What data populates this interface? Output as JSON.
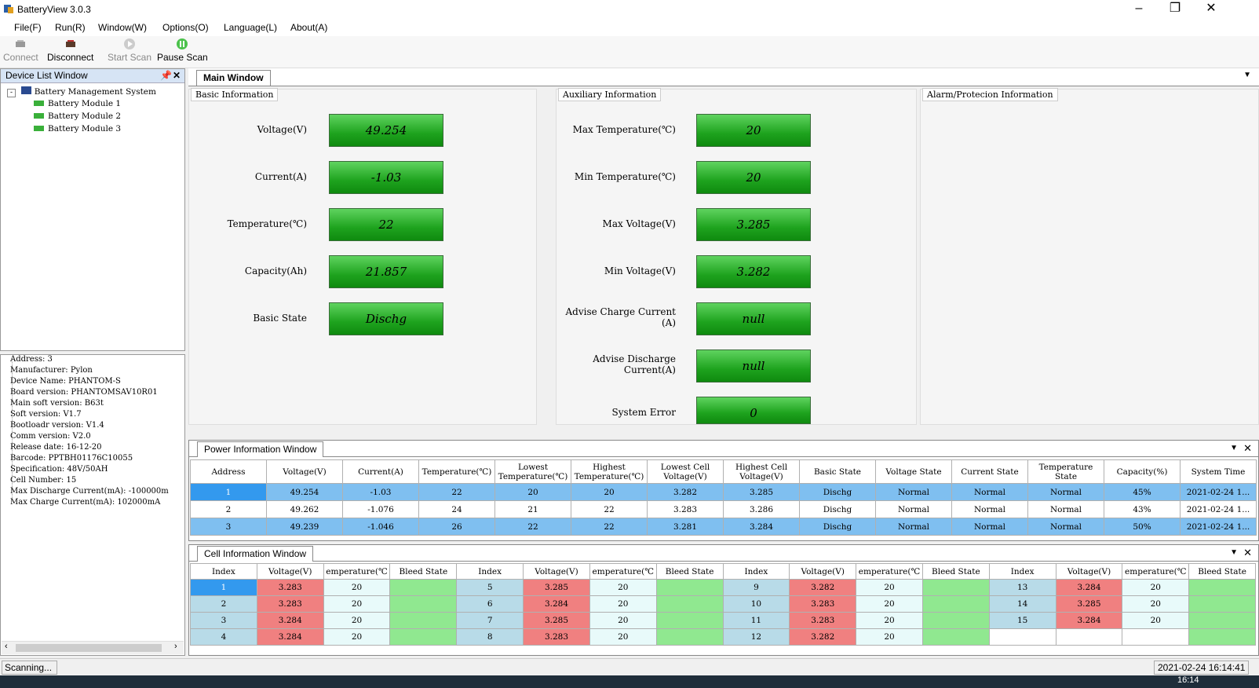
{
  "window": {
    "title": "BatteryView 3.0.3"
  },
  "menu": [
    "File(F)",
    "Run(R)",
    "Window(W)",
    "Options(O)",
    "Language(L)",
    "About(A)"
  ],
  "toolbar": {
    "connect": "Connect",
    "disconnect": "Disconnect",
    "start_scan": "Start Scan",
    "pause_scan": "Pause Scan"
  },
  "device_list": {
    "header": "Device List Window",
    "root": "Battery Management System",
    "modules": [
      "Battery Module 1",
      "Battery Module 2",
      "Battery Module 3"
    ]
  },
  "device_info": [
    "Address: 3",
    "Manufacturer: Pylon",
    "Device Name: PHANTOM-S",
    "Board version: PHANTOMSAV10R01",
    "Main soft version: B63t",
    "Soft version: V1.7",
    "Bootloadr version: V1.4",
    "Comm version: V2.0",
    "Release date: 16-12-20",
    "Barcode: PPTBH01176C10055",
    "Specification: 48V/50AH",
    "Cell Number: 15",
    "Max Discharge Current(mA): -100000m",
    "Max Charge Current(mA): 102000mA"
  ],
  "main_tab": "Main Window",
  "basic_info": {
    "title": "Basic Information",
    "fields": [
      {
        "label": "Voltage(V)",
        "value": "49.254"
      },
      {
        "label": "Current(A)",
        "value": "-1.03"
      },
      {
        "label": "Temperature(℃)",
        "value": "22"
      },
      {
        "label": "Capacity(Ah)",
        "value": "21.857"
      },
      {
        "label": "Basic State",
        "value": "Dischg"
      }
    ]
  },
  "aux_info": {
    "title": "Auxiliary Information",
    "fields": [
      {
        "label": "Max Temperature(℃)",
        "value": "20"
      },
      {
        "label": "Min Temperature(℃)",
        "value": "20"
      },
      {
        "label": "Max Voltage(V)",
        "value": "3.285"
      },
      {
        "label": "Min Voltage(V)",
        "value": "3.282"
      },
      {
        "label": "Advise Charge Current\n(A)",
        "value": "null"
      },
      {
        "label": "Advise Discharge\nCurrent(A)",
        "value": "null"
      },
      {
        "label": "System Error",
        "value": "0"
      }
    ]
  },
  "alarm_info": {
    "title": "Alarm/Protecion Information"
  },
  "power_window": {
    "title": "Power Information Window",
    "headers": [
      "Address",
      "Voltage(V)",
      "Current(A)",
      "Temperature(℃)",
      "Lowest\nTemperature(℃)",
      "Highest\nTemperature(℃)",
      "Lowest Cell\nVoltage(V)",
      "Highest Cell\nVoltage(V)",
      "Basic State",
      "Voltage State",
      "Current State",
      "Temperature\nState",
      "Capacity(%)",
      "System Time"
    ],
    "rows": [
      [
        "1",
        "49.254",
        "-1.03",
        "22",
        "20",
        "20",
        "3.282",
        "3.285",
        "Dischg",
        "Normal",
        "Normal",
        "Normal",
        "45%",
        "2021-02-24 1..."
      ],
      [
        "2",
        "49.262",
        "-1.076",
        "24",
        "21",
        "22",
        "3.283",
        "3.286",
        "Dischg",
        "Normal",
        "Normal",
        "Normal",
        "43%",
        "2021-02-24 1..."
      ],
      [
        "3",
        "49.239",
        "-1.046",
        "26",
        "22",
        "22",
        "3.281",
        "3.284",
        "Dischg",
        "Normal",
        "Normal",
        "Normal",
        "50%",
        "2021-02-24 1..."
      ]
    ]
  },
  "cell_window": {
    "title": "Cell Information Window",
    "headers": [
      "Index",
      "Voltage(V)",
      "emperature(℃",
      "Bleed State",
      "Index",
      "Voltage(V)",
      "emperature(℃",
      "Bleed State",
      "Index",
      "Voltage(V)",
      "emperature(℃",
      "Bleed State",
      "Index",
      "Voltage(V)",
      "emperature(℃",
      "Bleed State"
    ],
    "rows": [
      [
        "1",
        "3.283",
        "20",
        "",
        "5",
        "3.285",
        "20",
        "",
        "9",
        "3.282",
        "20",
        "",
        "13",
        "3.284",
        "20",
        ""
      ],
      [
        "2",
        "3.283",
        "20",
        "",
        "6",
        "3.284",
        "20",
        "",
        "10",
        "3.283",
        "20",
        "",
        "14",
        "3.285",
        "20",
        ""
      ],
      [
        "3",
        "3.284",
        "20",
        "",
        "7",
        "3.285",
        "20",
        "",
        "11",
        "3.283",
        "20",
        "",
        "15",
        "3.284",
        "20",
        ""
      ],
      [
        "4",
        "3.284",
        "20",
        "",
        "8",
        "3.283",
        "20",
        "",
        "12",
        "3.282",
        "20",
        "",
        "",
        "",
        "",
        ""
      ]
    ]
  },
  "status": {
    "left": "Scanning...",
    "right": "2021-02-24 16:14:41",
    "clock": "16:14"
  },
  "colors": {
    "green_value": "#1ea31e",
    "selected_row": "#7fbff0",
    "cell_index": "#b8dbe8",
    "cell_voltage": "#f08080",
    "cell_temp": "#e8fafa",
    "cell_bleed": "#90e890"
  }
}
